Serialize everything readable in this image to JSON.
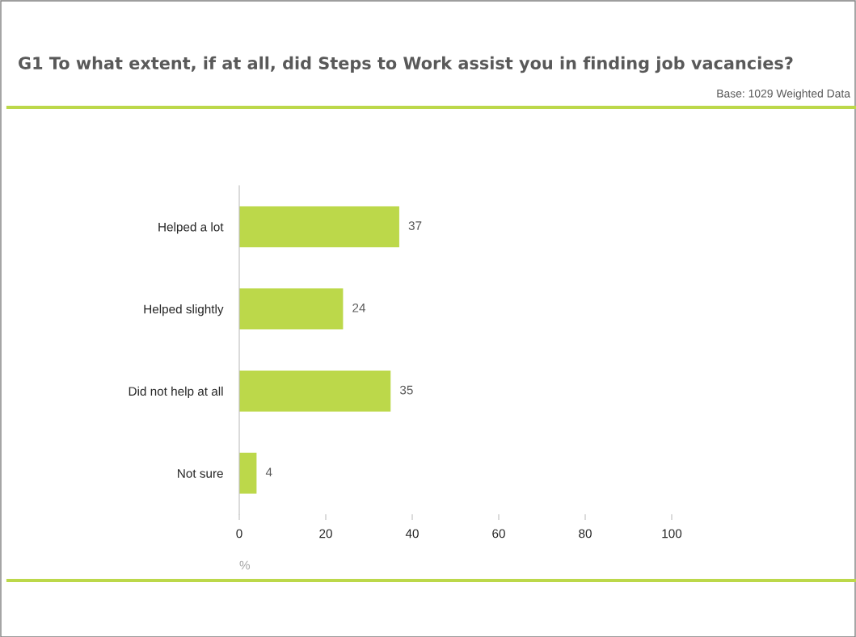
{
  "chart_data": {
    "type": "bar",
    "orientation": "horizontal",
    "title": "G1 To what extent, if at all, did Steps to Work assist you in finding job vacancies?",
    "annotations": [
      "Base: 1029 Weighted Data"
    ],
    "categories": [
      "Helped a lot",
      "Helped slightly",
      "Did not help at all",
      "Not sure"
    ],
    "values": [
      37,
      24,
      35,
      4
    ],
    "color": "#bcd84a",
    "xlim": [
      0,
      100
    ],
    "xticks": [
      0,
      20,
      40,
      60,
      80,
      100
    ],
    "xlabel": "%",
    "data_labels": true,
    "grid": false,
    "legend": false
  }
}
